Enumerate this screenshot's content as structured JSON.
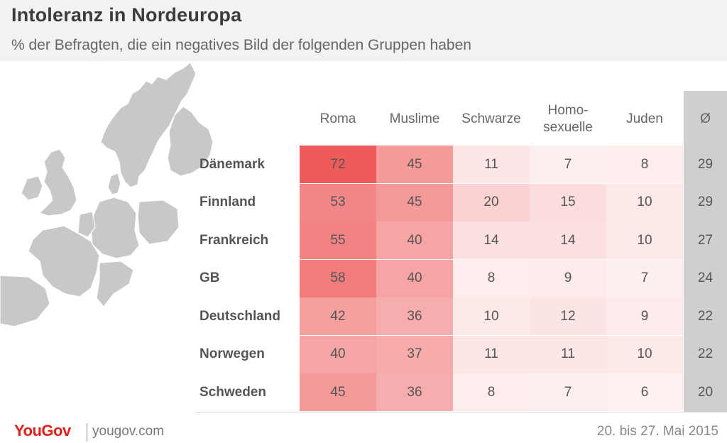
{
  "header": {
    "title": "Intoleranz in Nordeuropa",
    "subtitle": "% der Befragten, die ein negatives Bild der folgenden Gruppen haben"
  },
  "colors": {
    "heat_max": "#ef5b5b",
    "heat_min": "#ffffff",
    "avg_band": "#cfcfcf",
    "map_fill": "#c8c8c8",
    "logo_red": "#e0201c"
  },
  "map": {
    "icon": "northern-europe-map"
  },
  "chart_data": {
    "type": "table",
    "columns": [
      "Roma",
      "Muslime",
      "Schwarze",
      "Homo-\nsexuelle",
      "Juden",
      "Ø"
    ],
    "rows": [
      {
        "country": "Dänemark",
        "values": [
          72,
          45,
          11,
          7,
          8
        ],
        "avg": 29
      },
      {
        "country": "Finnland",
        "values": [
          53,
          45,
          20,
          15,
          10
        ],
        "avg": 29
      },
      {
        "country": "Frankreich",
        "values": [
          55,
          40,
          14,
          14,
          10
        ],
        "avg": 27
      },
      {
        "country": "GB",
        "values": [
          58,
          40,
          8,
          9,
          7
        ],
        "avg": 24
      },
      {
        "country": "Deutschland",
        "values": [
          42,
          36,
          10,
          12,
          9
        ],
        "avg": 22
      },
      {
        "country": "Norwegen",
        "values": [
          40,
          37,
          11,
          11,
          10
        ],
        "avg": 22
      },
      {
        "country": "Schweden",
        "values": [
          45,
          36,
          8,
          7,
          6
        ],
        "avg": 20
      }
    ]
  },
  "footer": {
    "logo": "YouGov",
    "site": "yougov.com",
    "date": "20. bis 27. Mai 2015"
  }
}
